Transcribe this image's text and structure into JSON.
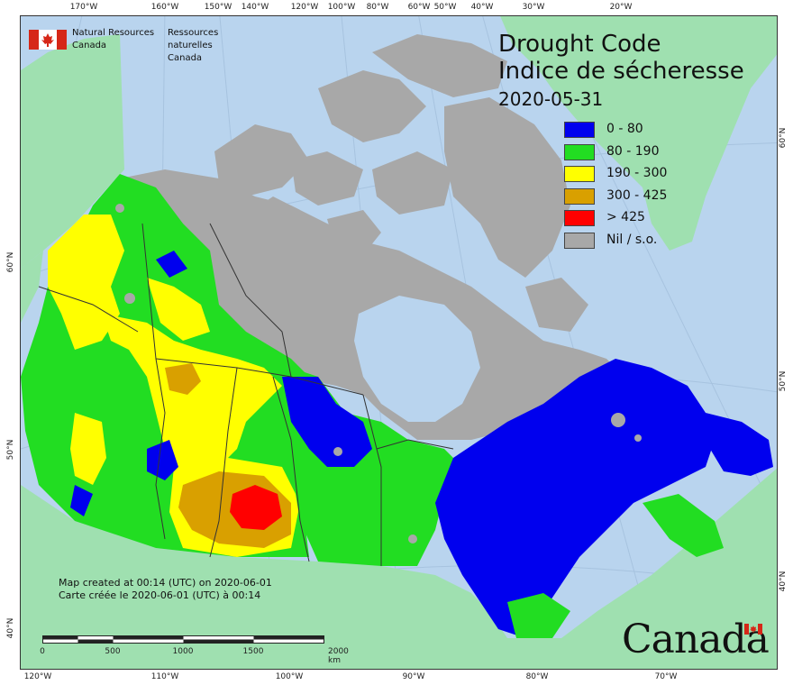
{
  "title": {
    "line1": "Drought Code",
    "line2": "Indice de sécheresse",
    "date": "2020-05-31"
  },
  "org": {
    "en_line1": "Natural Resources",
    "en_line2": "Canada",
    "fr_line1": "Ressources naturelles",
    "fr_line2": "Canada"
  },
  "legend": [
    {
      "label": "0 - 80",
      "color": "#0000ee"
    },
    {
      "label": "80 - 190",
      "color": "#22dd22"
    },
    {
      "label": "190 - 300",
      "color": "#ffff00"
    },
    {
      "label": "300 - 425",
      "color": "#d9a000"
    },
    {
      "label": "> 425",
      "color": "#ff0000"
    },
    {
      "label": "Nil / s.o.",
      "color": "#a8a8a8"
    }
  ],
  "note": {
    "line1": "Map created at 00:14 (UTC) on 2020-06-01",
    "line2": "Carte créée le 2020-06-01 (UTC) à 00:14"
  },
  "scalebar": {
    "labels": [
      "0",
      "500",
      "1000",
      "1500",
      "2000 km"
    ]
  },
  "wordmark": "Canada",
  "ticks": {
    "top": [
      "170°W",
      "160°W",
      "150°W",
      "140°W",
      "120°W",
      "100°W",
      "80°W",
      "60°W",
      "50°W",
      "40°W",
      "30°W",
      "20°W"
    ],
    "bottom": [
      "120°W",
      "110°W",
      "100°W",
      "90°W",
      "80°W",
      "70°W"
    ],
    "left": [
      "60°N",
      "50°N",
      "40°N"
    ],
    "right": [
      "60°N",
      "50°N",
      "40°N"
    ]
  },
  "colors": {
    "ocean": "#b9d4ee",
    "land_outside": "#9fe0b0",
    "border": "#333333"
  }
}
